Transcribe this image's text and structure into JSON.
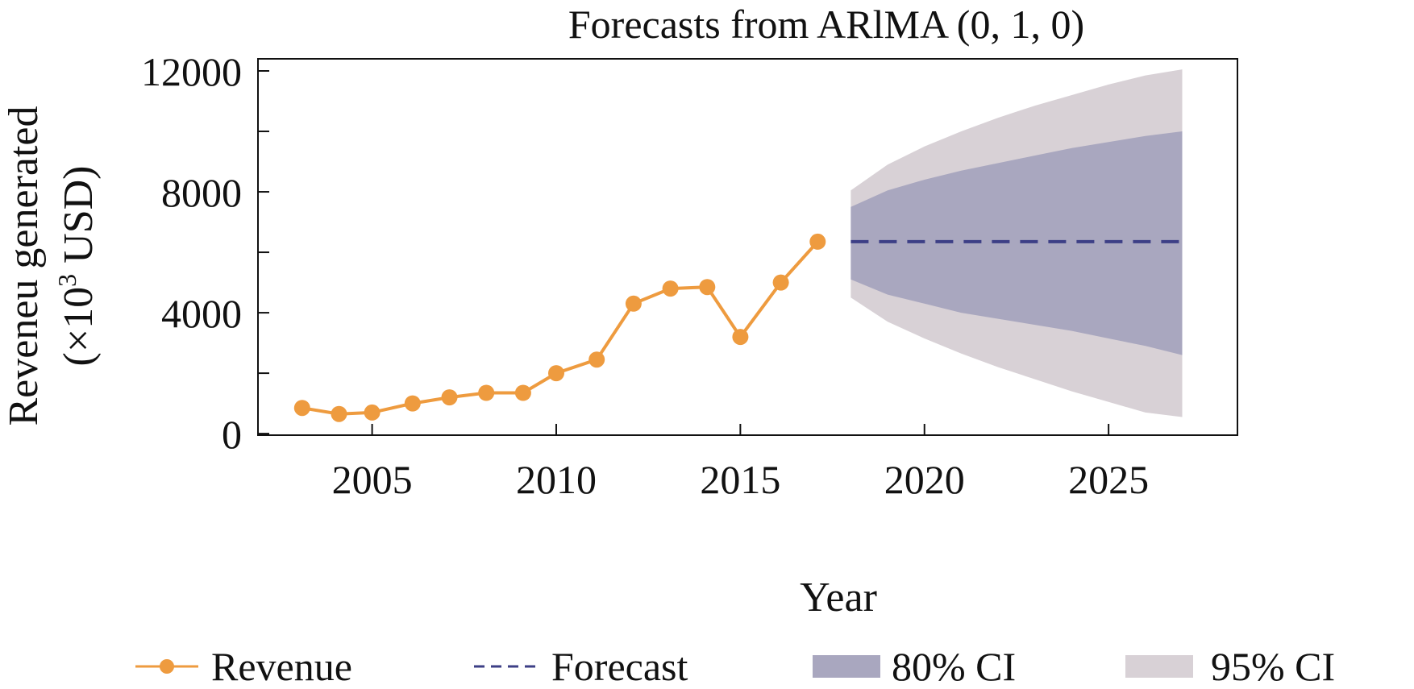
{
  "chart_data": {
    "type": "line",
    "title": "Forecasts from ARlMA (0, 1, 0)",
    "xlabel": "Year",
    "ylabel_line1": "Reveneu generated",
    "ylabel_line2_prefix": "(×10",
    "ylabel_line2_sup": "3",
    "ylabel_line2_suffix": " USD)",
    "xlim": [
      2001.9,
      2028.5
    ],
    "ylim": [
      -50,
      12400
    ],
    "x_ticks": [
      2005,
      2010,
      2015,
      2020,
      2025
    ],
    "x_minor_ticks": [
      2005,
      2010,
      2015,
      2020,
      2025
    ],
    "y_ticks": [
      0,
      4000,
      8000,
      12000
    ],
    "y_minor_ticks": [
      2000,
      6000,
      10000
    ],
    "grid": false,
    "legend_position": "bottom",
    "series": [
      {
        "name": "Revenue",
        "kind": "line-markers",
        "color": "#ee9b3f",
        "x": [
          2003.1,
          2004.1,
          2005,
          2006.1,
          2007.1,
          2008.1,
          2009.1,
          2010,
          2011.1,
          2012.1,
          2013.1,
          2014.1,
          2015,
          2016.1,
          2017.1
        ],
        "y": [
          850,
          650,
          700,
          1000,
          1200,
          1350,
          1350,
          2000,
          2450,
          4300,
          4800,
          4850,
          3200,
          5000,
          6350
        ]
      },
      {
        "name": "Forecast",
        "kind": "dashed-line",
        "color": "#3d3f86",
        "x": [
          2018,
          2027
        ],
        "y": [
          6350,
          6350
        ]
      },
      {
        "name": "80% CI",
        "kind": "band",
        "color": "#a9a7bf",
        "x": [
          2018,
          2019,
          2020,
          2021,
          2022,
          2023,
          2024,
          2025,
          2026,
          2027
        ],
        "lower": [
          5100,
          4600,
          4300,
          4000,
          3800,
          3600,
          3400,
          3150,
          2900,
          2600
        ],
        "upper": [
          7500,
          8050,
          8400,
          8700,
          8950,
          9200,
          9450,
          9650,
          9850,
          10000
        ]
      },
      {
        "name": "95% CI",
        "kind": "band",
        "color": "#d8d1d6",
        "x": [
          2018,
          2019,
          2020,
          2021,
          2022,
          2023,
          2024,
          2025,
          2026,
          2027
        ],
        "lower": [
          4500,
          3700,
          3150,
          2650,
          2200,
          1800,
          1400,
          1050,
          700,
          550
        ],
        "upper": [
          8050,
          8900,
          9500,
          10000,
          10450,
          10850,
          11200,
          11550,
          11850,
          12050
        ]
      }
    ],
    "legend": [
      {
        "label": "Revenue",
        "swatch": "line-marker",
        "color": "#ee9b3f"
      },
      {
        "label": "Forecast",
        "swatch": "dashed",
        "color": "#3d3f86"
      },
      {
        "label": "80% CI",
        "swatch": "box",
        "color": "#a9a7bf"
      },
      {
        "label": "95% CI",
        "swatch": "box",
        "color": "#d8d1d6"
      }
    ]
  }
}
